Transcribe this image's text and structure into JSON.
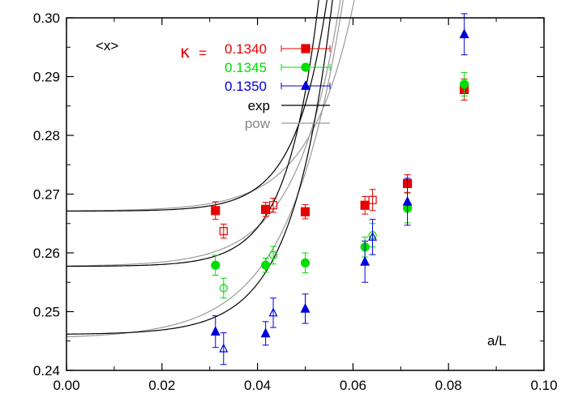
{
  "chart_data": {
    "type": "scatter",
    "title": "",
    "observable_label": "<x>",
    "xlabel": "a/L",
    "ylabel": "",
    "xlim": [
      0.0,
      0.1
    ],
    "ylim": [
      0.24,
      0.3
    ],
    "x_ticks": [
      "0.00",
      "0.02",
      "0.04",
      "0.06",
      "0.08",
      "0.10"
    ],
    "y_ticks": [
      "0.24",
      "0.25",
      "0.26",
      "0.27",
      "0.28",
      "0.29",
      "0.30"
    ],
    "grid": false,
    "legend_position": "top-center",
    "kappa_symbol": "κ",
    "kappa_equals": "=",
    "series": [
      {
        "name": "0.1340",
        "color": "#e60000",
        "marker": "square",
        "filled": [
          {
            "x": 0.0312,
            "y": 0.2672,
            "err": 0.0015
          },
          {
            "x": 0.0417,
            "y": 0.2674,
            "err": 0.0012
          },
          {
            "x": 0.05,
            "y": 0.267,
            "err": 0.0012
          },
          {
            "x": 0.0625,
            "y": 0.2681,
            "err": 0.0015
          },
          {
            "x": 0.0714,
            "y": 0.2718,
            "err": 0.0015
          },
          {
            "x": 0.0833,
            "y": 0.2878,
            "err": 0.0018
          }
        ],
        "open": [
          {
            "x": 0.0329,
            "y": 0.2637,
            "err": 0.0012
          },
          {
            "x": 0.0433,
            "y": 0.2681,
            "err": 0.0012
          },
          {
            "x": 0.0641,
            "y": 0.269,
            "err": 0.0018
          }
        ]
      },
      {
        "name": "0.1345",
        "color": "#00dd00",
        "marker": "circle",
        "filled": [
          {
            "x": 0.0312,
            "y": 0.2579,
            "err": 0.0017
          },
          {
            "x": 0.0417,
            "y": 0.2579,
            "err": 0.0012
          },
          {
            "x": 0.05,
            "y": 0.2583,
            "err": 0.0017
          },
          {
            "x": 0.0625,
            "y": 0.261,
            "err": 0.0017
          },
          {
            "x": 0.0714,
            "y": 0.2676,
            "err": 0.0025
          },
          {
            "x": 0.0833,
            "y": 0.2887,
            "err": 0.002
          }
        ],
        "open": [
          {
            "x": 0.0329,
            "y": 0.254,
            "err": 0.0017
          },
          {
            "x": 0.0433,
            "y": 0.2596,
            "err": 0.0015
          },
          {
            "x": 0.0641,
            "y": 0.263,
            "err": 0.002
          }
        ]
      },
      {
        "name": "0.1350",
        "color": "#0000dd",
        "marker": "triangle",
        "filled": [
          {
            "x": 0.0312,
            "y": 0.2466,
            "err": 0.0027
          },
          {
            "x": 0.0417,
            "y": 0.2463,
            "err": 0.002
          },
          {
            "x": 0.05,
            "y": 0.2505,
            "err": 0.0025
          },
          {
            "x": 0.0625,
            "y": 0.2585,
            "err": 0.0035
          },
          {
            "x": 0.0714,
            "y": 0.2687,
            "err": 0.004
          },
          {
            "x": 0.0833,
            "y": 0.2972,
            "err": 0.0035
          }
        ],
        "open": [
          {
            "x": 0.0329,
            "y": 0.2437,
            "err": 0.0027
          },
          {
            "x": 0.0433,
            "y": 0.2498,
            "err": 0.0025
          },
          {
            "x": 0.0641,
            "y": 0.2627,
            "err": 0.003
          }
        ]
      }
    ],
    "fit_legend": [
      {
        "name": "exp",
        "color": "#000000"
      },
      {
        "name": "pow",
        "color": "#999999"
      }
    ],
    "fits": [
      {
        "series": "0.1340",
        "exp": {
          "c": 0.2671,
          "a": 1.004e-05,
          "b": 150,
          "xmax": 0.075
        },
        "pow": {
          "c": 0.2671,
          "a": 4.748e-05,
          "b": 110,
          "xmax": 0.075
        }
      },
      {
        "series": "0.1345",
        "exp": {
          "c": 0.2577,
          "a": 1.638e-05,
          "b": 150,
          "xmax": 0.075
        },
        "pow": {
          "c": 0.2577,
          "a": 8.231e-05,
          "b": 110,
          "xmax": 0.075
        }
      },
      {
        "series": "0.1350",
        "exp": {
          "c": 0.2461,
          "a": 7.119e-05,
          "b": 120,
          "xmax": 0.075
        },
        "pow": {
          "c": 0.2454,
          "a": 0.0003131,
          "b": 90,
          "xmax": 0.075
        }
      }
    ]
  }
}
